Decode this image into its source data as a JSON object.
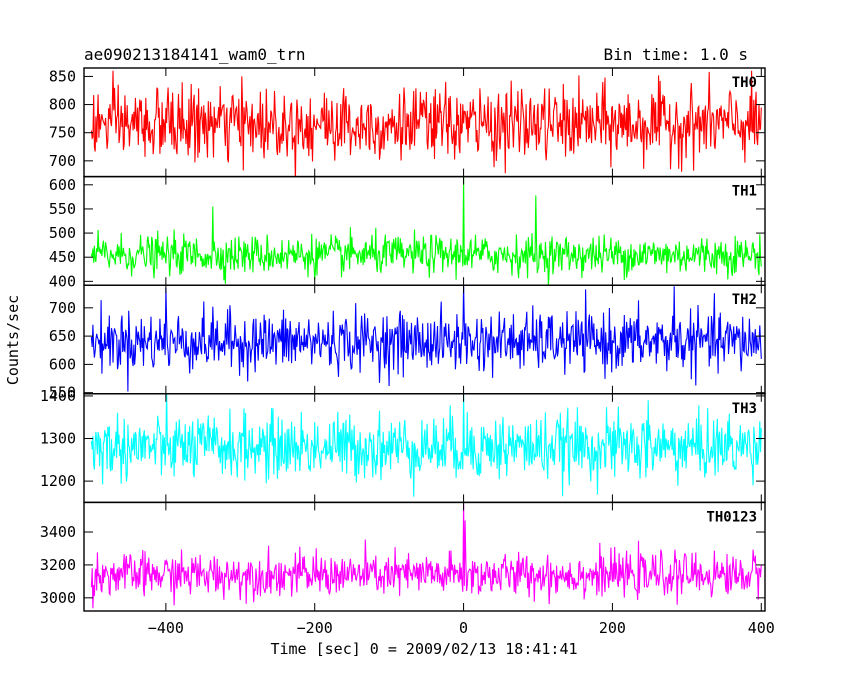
{
  "chart_data": {
    "type": "line",
    "title_left": "ae090213184141_wam0_trn",
    "title_right": "Bin time: 1.0 s",
    "xlabel": "Time [sec] 0 = 2009/02/13 18:41:41",
    "ylabel": "Counts/sec",
    "xlim": [
      -510,
      405
    ],
    "x_ticks": [
      -400,
      -200,
      0,
      200,
      400
    ],
    "x_tick_labels": [
      "−400",
      "−200",
      "0",
      "200",
      "400"
    ],
    "bin_time_s": 1.0,
    "x_start": -500,
    "x_end": 400,
    "panels": [
      {
        "name": "TH0",
        "color": "#ff0000",
        "ylim": [
          672,
          865
        ],
        "y_ticks": [
          700,
          750,
          800,
          850
        ],
        "y_tick_labels": [
          "700",
          "750",
          "800",
          "850"
        ],
        "mean": 765,
        "sigma": 32,
        "spikes": []
      },
      {
        "name": "TH1",
        "color": "#00ff00",
        "ylim": [
          392,
          617
        ],
        "y_ticks": [
          400,
          450,
          500,
          550,
          600
        ],
        "y_tick_labels": [
          "400",
          "450",
          "500",
          "550",
          "600"
        ],
        "mean": 455,
        "sigma": 20,
        "spikes": [
          {
            "x": 0,
            "y": 617
          },
          {
            "x": 97,
            "y": 578
          },
          {
            "x": -337,
            "y": 555
          }
        ]
      },
      {
        "name": "TH2",
        "color": "#0000ff",
        "ylim": [
          548,
          740
        ],
        "y_ticks": [
          550,
          600,
          650,
          700
        ],
        "y_tick_labels": [
          "550",
          "600",
          "650",
          "700"
        ],
        "mean": 640,
        "sigma": 26,
        "spikes": [
          {
            "x": 0,
            "y": 740
          },
          {
            "x": -400,
            "y": 735
          },
          {
            "x": 283,
            "y": 738
          }
        ]
      },
      {
        "name": "TH3",
        "color": "#00ffff",
        "ylim": [
          1150,
          1405
        ],
        "y_ticks": [
          1200,
          1300,
          1400
        ],
        "y_tick_labels": [
          "1200",
          "1300",
          "1400"
        ],
        "mean": 1280,
        "sigma": 38,
        "spikes": [
          {
            "x": 0,
            "y": 1405
          },
          {
            "x": 248,
            "y": 1390
          }
        ]
      },
      {
        "name": "TH0123",
        "color": "#ff00ff",
        "ylim": [
          2920,
          3580
        ],
        "y_ticks": [
          3000,
          3200,
          3400
        ],
        "y_tick_labels": [
          "3000",
          "3200",
          "3400"
        ],
        "mean": 3140,
        "sigma": 65,
        "spikes": [
          {
            "x": 0,
            "y": 3580
          },
          {
            "x": 2,
            "y": 3470
          }
        ]
      }
    ]
  }
}
